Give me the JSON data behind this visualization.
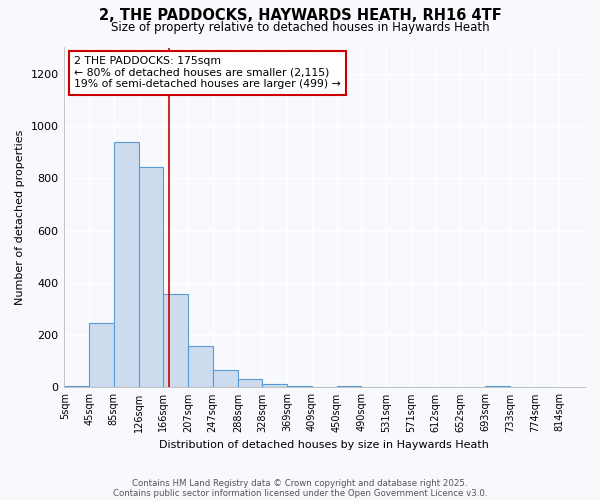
{
  "title1": "2, THE PADDOCKS, HAYWARDS HEATH, RH16 4TF",
  "title2": "Size of property relative to detached houses in Haywards Heath",
  "xlabel": "Distribution of detached houses by size in Haywards Heath",
  "ylabel": "Number of detached properties",
  "bar_heights": [
    5,
    248,
    940,
    843,
    356,
    160,
    65,
    32,
    12,
    4,
    0,
    4,
    0,
    0,
    0,
    0,
    0,
    4,
    0,
    0
  ],
  "bin_edges": [
    5,
    45,
    85,
    126,
    166,
    207,
    247,
    288,
    328,
    369,
    409,
    450,
    490,
    531,
    571,
    612,
    652,
    693,
    733,
    774,
    814
  ],
  "bar_color": "#ccdcee",
  "bar_edgecolor": "#5b9bd5",
  "reference_line_x": 175,
  "reference_line_color": "#cc0000",
  "annotation_line1": "2 THE PADDOCKS: 175sqm",
  "annotation_line2": "← 80% of detached houses are smaller (2,115)",
  "annotation_line3": "19% of semi-detached houses are larger (499) →",
  "ylim": [
    0,
    1300
  ],
  "yticks": [
    0,
    200,
    400,
    600,
    800,
    1000,
    1200
  ],
  "footnote1": "Contains HM Land Registry data © Crown copyright and database right 2025.",
  "footnote2": "Contains public sector information licensed under the Open Government Licence v3.0.",
  "bg_color": "#f7f9fc",
  "grid_color": "#e0e8f0"
}
